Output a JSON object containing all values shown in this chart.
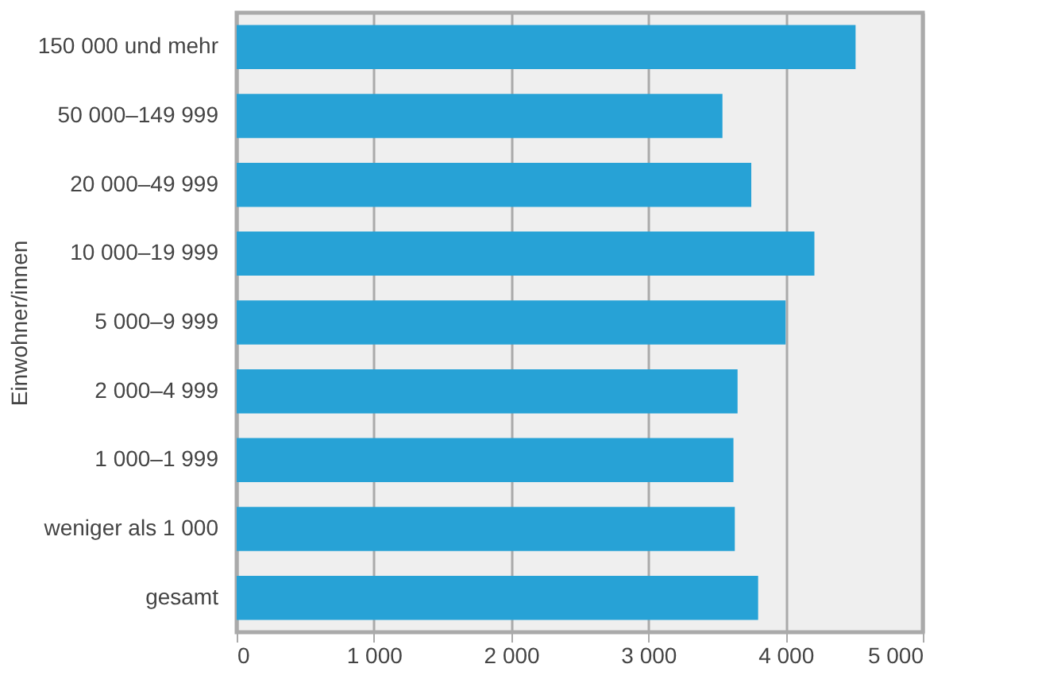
{
  "chart_data": {
    "type": "bar",
    "orientation": "horizontal",
    "ylabel": "Einwohner/innen",
    "categories": [
      "150 000 und mehr",
      "50 000–149 999",
      "20 000–49 999",
      "10 000–19 999",
      "5 000–9 999",
      "2 000–4 999",
      "1 000–1 999",
      "weniger als 1 000",
      "gesamt"
    ],
    "values": [
      4510,
      3540,
      3750,
      4210,
      4000,
      3650,
      3620,
      3630,
      3800
    ],
    "color": "#27a2d6",
    "xlim": [
      0,
      5000
    ],
    "xticks": [
      0,
      {
        "value": 1000,
        "label": "1 000"
      },
      {
        "value": 2000,
        "label": "2 000"
      },
      {
        "value": 3000,
        "label": "3 000"
      },
      {
        "value": 4000,
        "label": "4 000"
      },
      {
        "value": 5000,
        "label": "5 000"
      }
    ],
    "grid": "x"
  }
}
